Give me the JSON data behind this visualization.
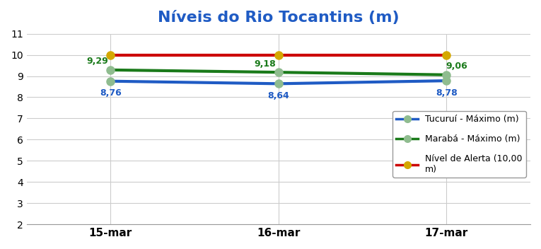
{
  "title": "Níveis do Rio Tocantins (m)",
  "title_color": "#1F5BC4",
  "title_fontsize": 16,
  "x_labels": [
    "15-mar",
    "16-mar",
    "17-mar"
  ],
  "x_positions": [
    0,
    1,
    2
  ],
  "tucurui": [
    8.76,
    8.64,
    8.78
  ],
  "tucurui_color": "#1F5BC4",
  "tucurui_label": "Tucuruí - Máximo (m)",
  "tucurui_marker_color": "#8fbc8f",
  "maraba": [
    9.29,
    9.18,
    9.06
  ],
  "maraba_color": "#1a7a1a",
  "maraba_label": "Marabá - Máximo (m)",
  "maraba_marker_color": "#8fbc8f",
  "alerta": [
    10.0,
    10.0,
    10.0
  ],
  "alerta_color": "#cc0000",
  "alerta_label": "Nível de Alerta (10,00\nm)",
  "alerta_marker_color": "#d4a800",
  "ylim": [
    2,
    11
  ],
  "yticks": [
    2,
    3,
    4,
    5,
    6,
    7,
    8,
    9,
    10,
    11
  ],
  "grid_color": "#cccccc",
  "background_color": "#ffffff",
  "border_color": "#999999",
  "linewidth": 2.5,
  "markersize": 8,
  "annotation_fontsize": 9,
  "tucurui_ann_color": "#1F5BC4",
  "maraba_ann_color": "#1a7a1a"
}
